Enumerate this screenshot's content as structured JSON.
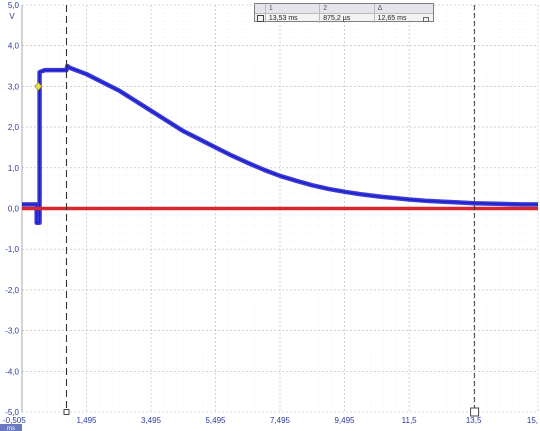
{
  "window": {
    "corner_label": "ms"
  },
  "y_axis": {
    "unit": "V",
    "top_label": "5,0",
    "tick_labels": [
      "5,0",
      "4,0",
      "3,0",
      "2,0",
      "1,0",
      "0,0",
      "-1,0",
      "-2,0",
      "-3,0",
      "-4,0",
      "-5,0"
    ],
    "tick_values": [
      5,
      4,
      3,
      2,
      1,
      0,
      -1,
      -2,
      -3,
      -4,
      -5
    ]
  },
  "x_axis": {
    "tick_labels": [
      "-0,505",
      "1,495",
      "3,495",
      "5,495",
      "7,495",
      "9,495",
      "11,5",
      "13,5",
      "15,"
    ],
    "tick_values": [
      -0.505,
      1.495,
      3.495,
      5.495,
      7.495,
      9.495,
      11.5,
      13.5,
      15.495
    ]
  },
  "rulers": {
    "col1_header": "1",
    "col2_header": "2",
    "col3_header": "Δ",
    "ruler1_value": "13,53 ms",
    "ruler2_value": "875,2 µs",
    "delta_value": "12,65 ms"
  },
  "colors": {
    "channel_a": "#1c1ccf",
    "channel_b": "#d8262e",
    "grid": "#b8b8b8",
    "axis_text": "#2a3aa0",
    "trigger_marker": "#e8e04a"
  },
  "chart_data": {
    "type": "line",
    "title": "",
    "xlabel": "",
    "ylabel": "V",
    "xlim": [
      -0.505,
      15.495
    ],
    "ylim": [
      -5.0,
      5.0
    ],
    "grid": true,
    "legend": "none",
    "ruler_x": [
      0.875,
      13.53
    ],
    "trigger": {
      "x": 0.0,
      "y": 3.0
    },
    "series": [
      {
        "color": "#1c1ccf",
        "x": [
          -0.505,
          -0.05,
          -0.05,
          0.04,
          0.04,
          0.2,
          0.5,
          0.875,
          0.9,
          1.0,
          1.5,
          2.0,
          2.5,
          3.0,
          3.5,
          4.0,
          4.5,
          5.0,
          5.5,
          6.0,
          6.5,
          7.0,
          7.5,
          8.0,
          8.5,
          9.0,
          9.5,
          10.0,
          10.5,
          11.0,
          11.5,
          12.0,
          12.5,
          13.0,
          13.5,
          14.0,
          14.5,
          15.0,
          15.495
        ],
        "y": [
          0.1,
          0.1,
          -0.35,
          -0.35,
          3.35,
          3.4,
          3.4,
          3.4,
          3.5,
          3.45,
          3.3,
          3.1,
          2.9,
          2.65,
          2.4,
          2.15,
          1.9,
          1.7,
          1.5,
          1.3,
          1.12,
          0.95,
          0.8,
          0.68,
          0.57,
          0.48,
          0.41,
          0.35,
          0.3,
          0.26,
          0.22,
          0.19,
          0.17,
          0.15,
          0.13,
          0.12,
          0.11,
          0.1,
          0.1
        ]
      },
      {
        "color": "#d8262e",
        "x": [
          -0.505,
          15.495
        ],
        "y": [
          0.0,
          0.0
        ]
      }
    ]
  }
}
